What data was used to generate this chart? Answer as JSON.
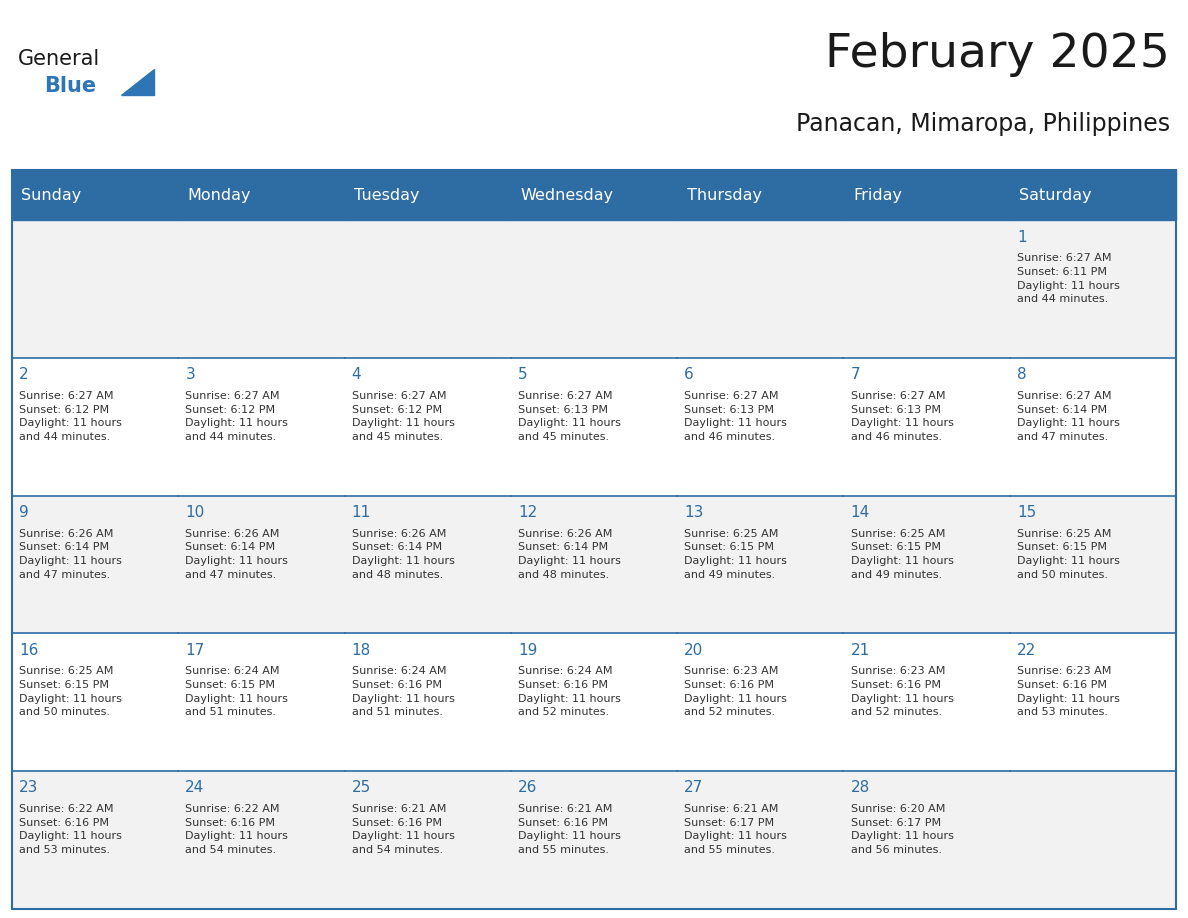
{
  "title": "February 2025",
  "subtitle": "Panacan, Mimaropa, Philippines",
  "header_bg": "#2E6DA4",
  "header_text_color": "#FFFFFF",
  "cell_bg_light": "#F2F2F2",
  "cell_bg_white": "#FFFFFF",
  "day_headers": [
    "Sunday",
    "Monday",
    "Tuesday",
    "Wednesday",
    "Thursday",
    "Friday",
    "Saturday"
  ],
  "title_color": "#1a1a1a",
  "subtitle_color": "#1a1a1a",
  "date_color": "#2E6DA4",
  "info_color": "#333333",
  "logo_general_color": "#1a1a1a",
  "logo_blue_color": "#2E75B6",
  "calendar_data": [
    [
      null,
      null,
      null,
      null,
      null,
      null,
      {
        "day": 1,
        "sunrise": "6:27 AM",
        "sunset": "6:11 PM",
        "daylight": "11 hours\nand 44 minutes."
      }
    ],
    [
      {
        "day": 2,
        "sunrise": "6:27 AM",
        "sunset": "6:12 PM",
        "daylight": "11 hours\nand 44 minutes."
      },
      {
        "day": 3,
        "sunrise": "6:27 AM",
        "sunset": "6:12 PM",
        "daylight": "11 hours\nand 44 minutes."
      },
      {
        "day": 4,
        "sunrise": "6:27 AM",
        "sunset": "6:12 PM",
        "daylight": "11 hours\nand 45 minutes."
      },
      {
        "day": 5,
        "sunrise": "6:27 AM",
        "sunset": "6:13 PM",
        "daylight": "11 hours\nand 45 minutes."
      },
      {
        "day": 6,
        "sunrise": "6:27 AM",
        "sunset": "6:13 PM",
        "daylight": "11 hours\nand 46 minutes."
      },
      {
        "day": 7,
        "sunrise": "6:27 AM",
        "sunset": "6:13 PM",
        "daylight": "11 hours\nand 46 minutes."
      },
      {
        "day": 8,
        "sunrise": "6:27 AM",
        "sunset": "6:14 PM",
        "daylight": "11 hours\nand 47 minutes."
      }
    ],
    [
      {
        "day": 9,
        "sunrise": "6:26 AM",
        "sunset": "6:14 PM",
        "daylight": "11 hours\nand 47 minutes."
      },
      {
        "day": 10,
        "sunrise": "6:26 AM",
        "sunset": "6:14 PM",
        "daylight": "11 hours\nand 47 minutes."
      },
      {
        "day": 11,
        "sunrise": "6:26 AM",
        "sunset": "6:14 PM",
        "daylight": "11 hours\nand 48 minutes."
      },
      {
        "day": 12,
        "sunrise": "6:26 AM",
        "sunset": "6:14 PM",
        "daylight": "11 hours\nand 48 minutes."
      },
      {
        "day": 13,
        "sunrise": "6:25 AM",
        "sunset": "6:15 PM",
        "daylight": "11 hours\nand 49 minutes."
      },
      {
        "day": 14,
        "sunrise": "6:25 AM",
        "sunset": "6:15 PM",
        "daylight": "11 hours\nand 49 minutes."
      },
      {
        "day": 15,
        "sunrise": "6:25 AM",
        "sunset": "6:15 PM",
        "daylight": "11 hours\nand 50 minutes."
      }
    ],
    [
      {
        "day": 16,
        "sunrise": "6:25 AM",
        "sunset": "6:15 PM",
        "daylight": "11 hours\nand 50 minutes."
      },
      {
        "day": 17,
        "sunrise": "6:24 AM",
        "sunset": "6:15 PM",
        "daylight": "11 hours\nand 51 minutes."
      },
      {
        "day": 18,
        "sunrise": "6:24 AM",
        "sunset": "6:16 PM",
        "daylight": "11 hours\nand 51 minutes."
      },
      {
        "day": 19,
        "sunrise": "6:24 AM",
        "sunset": "6:16 PM",
        "daylight": "11 hours\nand 52 minutes."
      },
      {
        "day": 20,
        "sunrise": "6:23 AM",
        "sunset": "6:16 PM",
        "daylight": "11 hours\nand 52 minutes."
      },
      {
        "day": 21,
        "sunrise": "6:23 AM",
        "sunset": "6:16 PM",
        "daylight": "11 hours\nand 52 minutes."
      },
      {
        "day": 22,
        "sunrise": "6:23 AM",
        "sunset": "6:16 PM",
        "daylight": "11 hours\nand 53 minutes."
      }
    ],
    [
      {
        "day": 23,
        "sunrise": "6:22 AM",
        "sunset": "6:16 PM",
        "daylight": "11 hours\nand 53 minutes."
      },
      {
        "day": 24,
        "sunrise": "6:22 AM",
        "sunset": "6:16 PM",
        "daylight": "11 hours\nand 54 minutes."
      },
      {
        "day": 25,
        "sunrise": "6:21 AM",
        "sunset": "6:16 PM",
        "daylight": "11 hours\nand 54 minutes."
      },
      {
        "day": 26,
        "sunrise": "6:21 AM",
        "sunset": "6:16 PM",
        "daylight": "11 hours\nand 55 minutes."
      },
      {
        "day": 27,
        "sunrise": "6:21 AM",
        "sunset": "6:17 PM",
        "daylight": "11 hours\nand 55 minutes."
      },
      {
        "day": 28,
        "sunrise": "6:20 AM",
        "sunset": "6:17 PM",
        "daylight": "11 hours\nand 56 minutes."
      },
      null
    ]
  ]
}
